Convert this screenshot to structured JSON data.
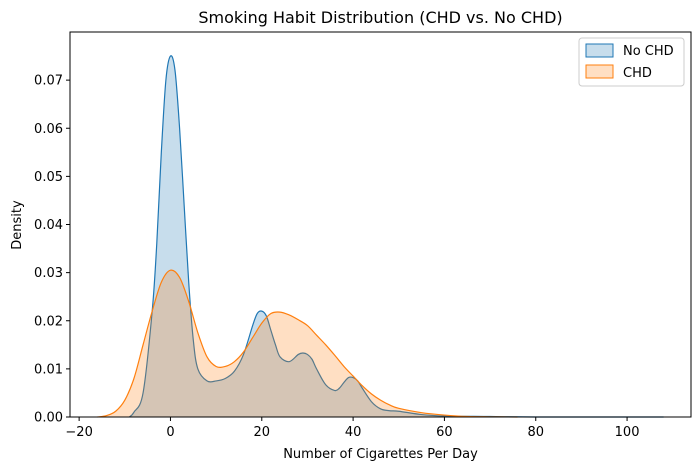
{
  "chart_data": {
    "type": "area",
    "title": "Smoking Habit Distribution (CHD vs. No CHD)",
    "xlabel": "Number of Cigarettes Per Day",
    "ylabel": "Density",
    "xlim": [
      -22,
      114
    ],
    "ylim": [
      0,
      0.08
    ],
    "x_ticks": [
      {
        "value": -20,
        "label": "−20"
      },
      {
        "value": 0,
        "label": "0"
      },
      {
        "value": 20,
        "label": "20"
      },
      {
        "value": 40,
        "label": "40"
      },
      {
        "value": 60,
        "label": "60"
      },
      {
        "value": 80,
        "label": "80"
      },
      {
        "value": 100,
        "label": "100"
      }
    ],
    "y_ticks": [
      {
        "value": 0,
        "label": "0.00"
      },
      {
        "value": 0.01,
        "label": "0.01"
      },
      {
        "value": 0.02,
        "label": "0.02"
      },
      {
        "value": 0.03,
        "label": "0.03"
      },
      {
        "value": 0.04,
        "label": "0.04"
      },
      {
        "value": 0.05,
        "label": "0.05"
      },
      {
        "value": 0.06,
        "label": "0.06"
      },
      {
        "value": 0.07,
        "label": "0.07"
      }
    ],
    "grid": false,
    "legend_position": "top-right",
    "series": [
      {
        "name": "No CHD",
        "color": "#1f77b4",
        "x": [
          -9,
          -8,
          -6,
          -4,
          -3,
          -2,
          -1,
          0,
          1,
          2,
          3,
          4,
          5,
          6,
          8,
          10,
          12,
          14,
          16,
          18,
          19,
          20,
          21,
          22,
          23,
          24,
          26,
          28,
          29,
          30,
          31,
          32,
          34,
          36,
          37,
          38,
          39,
          40,
          41,
          42,
          44,
          46,
          48,
          50,
          55,
          60,
          70,
          80,
          100,
          108
        ],
        "y": [
          0,
          0.001,
          0.005,
          0.022,
          0.036,
          0.055,
          0.07,
          0.075,
          0.072,
          0.06,
          0.044,
          0.028,
          0.016,
          0.01,
          0.0075,
          0.0075,
          0.008,
          0.0095,
          0.013,
          0.019,
          0.0215,
          0.022,
          0.021,
          0.018,
          0.015,
          0.0125,
          0.0115,
          0.013,
          0.0133,
          0.013,
          0.012,
          0.01,
          0.0067,
          0.0055,
          0.006,
          0.0072,
          0.0082,
          0.0082,
          0.0075,
          0.006,
          0.0032,
          0.0017,
          0.0013,
          0.0012,
          0.0005,
          0.0002,
          0.0001,
          0,
          0,
          0
        ]
      },
      {
        "name": "CHD",
        "color": "#ff7f0e",
        "x": [
          -16,
          -14,
          -12,
          -10,
          -8,
          -6,
          -4,
          -2,
          0,
          2,
          4,
          6,
          8,
          10,
          12,
          14,
          16,
          18,
          20,
          22,
          24,
          26,
          28,
          30,
          32,
          34,
          36,
          38,
          40,
          42,
          44,
          46,
          48,
          50,
          55,
          60,
          65,
          70,
          76
        ],
        "y": [
          0,
          0.0003,
          0.0012,
          0.0035,
          0.008,
          0.015,
          0.022,
          0.028,
          0.0305,
          0.029,
          0.024,
          0.0175,
          0.0125,
          0.0105,
          0.0105,
          0.0115,
          0.0135,
          0.0165,
          0.0195,
          0.0215,
          0.0218,
          0.0212,
          0.0202,
          0.019,
          0.017,
          0.015,
          0.0128,
          0.0105,
          0.0085,
          0.0065,
          0.0048,
          0.0035,
          0.0025,
          0.0018,
          0.0009,
          0.0004,
          0.0001,
          4e-05,
          0
        ]
      }
    ]
  }
}
